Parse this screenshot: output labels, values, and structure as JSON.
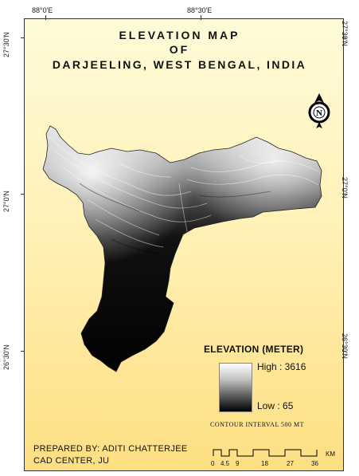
{
  "graticule": {
    "top_left_lon": "88°0'E",
    "top_right_lon": "88°30'E",
    "lat_top": "27°30'N",
    "lat_mid": "27°0'N",
    "lat_bottom": "26°30'N"
  },
  "title": {
    "line1": "ELEVATION MAP",
    "line2": "OF",
    "line3": "DARJEELING, WEST BENGAL, INDIA"
  },
  "north_arrow": {
    "letter": "N",
    "icon": "north-arrow-icon"
  },
  "legend": {
    "title": "ELEVATION (METER)",
    "high": "High : 3616",
    "low": "Low : 65",
    "contour_interval": "CONTOUR INTERVAL 500 MT"
  },
  "credits": {
    "line1": "PREPARED BY: ADITI CHATTERJEE",
    "line2": "CAD CENTER, JU"
  },
  "scale_bar": {
    "unit": "KM",
    "ticks": [
      "0",
      "4.5",
      "9",
      "18",
      "27",
      "36"
    ]
  }
}
